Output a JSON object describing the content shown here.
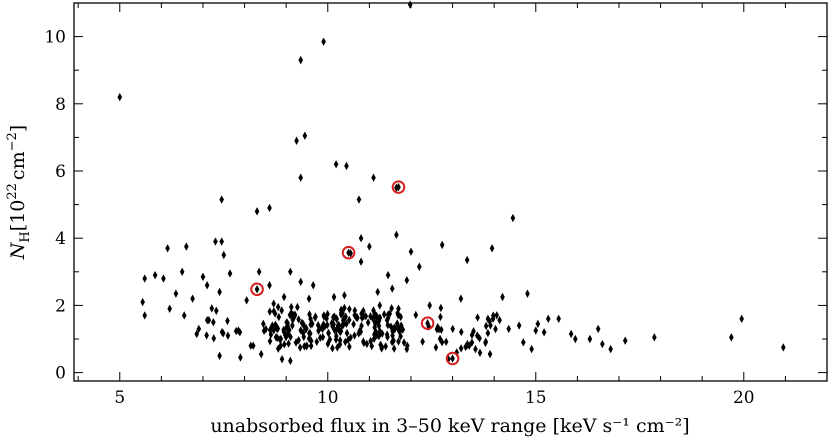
{
  "chart_data": {
    "type": "scatter",
    "xlabel": "unabsorbed flux in 3–50 keV range [keV s⁻¹ cm⁻²]",
    "ylabel": "N_H [10^22 cm^-2]",
    "ylabel_parts": {
      "symbol": "N",
      "sub": "H",
      "unit_pre": "[10",
      "exp1": "22",
      "unit_mid": "cm",
      "exp2": "−2",
      "unit_post": "]"
    },
    "xlim": [
      3.9,
      22.0
    ],
    "ylim": [
      -0.25,
      11.0
    ],
    "x_ticks": [
      5,
      10,
      15,
      20
    ],
    "y_ticks": [
      0,
      2,
      4,
      6,
      8,
      10
    ],
    "grid": false,
    "colors": {
      "points": "#000000",
      "highlight": "#d62020"
    },
    "series": [
      {
        "marker": "diamond",
        "x": [
          5.0,
          11.98,
          9.9,
          9.35,
          7.45,
          9.45,
          9.25,
          10.2,
          10.45,
          9.35,
          11.1,
          11.65,
          10.75,
          8.6,
          8.3,
          7.45,
          14.45,
          11.65,
          11.0,
          10.8,
          12.75,
          7.3,
          10.55,
          13.95,
          6.15,
          6.6,
          10.8,
          12.0,
          7.5,
          13.35,
          12.2,
          9.1,
          7.65,
          6.5,
          7.0,
          8.35,
          11.45,
          11.9,
          8.6,
          9.35,
          5.6,
          5.85,
          8.95,
          7.1,
          7.4,
          6.35,
          6.75,
          8.05,
          8.7,
          9.55,
          10.15,
          11.25,
          12.45,
          11.55,
          6.05,
          13.2,
          14.2,
          14.8,
          15.3,
          15.55,
          16.3,
          16.6,
          16.8,
          17.15,
          17.85,
          19.7,
          19.95,
          20.95,
          15.95,
          15.85,
          14.9,
          14.7,
          14.35,
          13.9,
          13.55,
          12.9,
          12.6,
          11.9,
          13.1,
          13.4,
          7.4,
          7.9,
          8.4,
          8.9,
          9.1,
          8.15,
          7.6,
          6.9,
          6.2,
          5.6,
          5.55,
          6.55,
          7.25,
          8.65,
          7.85,
          6.85,
          11.7,
          13.85,
          14.6,
          15.05,
          15.0,
          16.5,
          15.2,
          11.2,
          10.4,
          9.65
        ],
        "y": [
          8.2,
          10.95,
          9.85,
          9.3,
          5.15,
          7.05,
          6.9,
          6.2,
          6.15,
          5.8,
          5.8,
          5.5,
          5.15,
          4.9,
          4.8,
          3.9,
          4.6,
          4.1,
          3.75,
          4.0,
          3.8,
          3.9,
          3.55,
          3.7,
          3.7,
          3.75,
          3.3,
          3.6,
          3.5,
          3.35,
          3.15,
          3.0,
          2.95,
          3.0,
          2.85,
          3.0,
          2.9,
          2.75,
          2.6,
          2.7,
          2.8,
          2.9,
          2.25,
          2.6,
          2.4,
          2.35,
          2.2,
          2.15,
          2.05,
          2.2,
          2.25,
          2.0,
          2.0,
          2.5,
          2.8,
          2.2,
          2.25,
          2.35,
          1.6,
          1.6,
          1.0,
          0.85,
          0.7,
          0.95,
          1.05,
          1.05,
          1.6,
          0.75,
          1.0,
          1.15,
          0.7,
          0.9,
          1.3,
          0.55,
          0.7,
          0.4,
          0.75,
          0.7,
          0.6,
          0.8,
          0.5,
          0.45,
          0.55,
          0.4,
          0.35,
          0.8,
          1.1,
          1.3,
          1.9,
          1.7,
          2.1,
          1.7,
          1.5,
          1.35,
          1.25,
          1.15,
          1.9,
          1.6,
          1.4,
          1.45,
          1.25,
          1.3,
          1.2,
          2.4,
          2.3,
          2.6
        ]
      },
      {
        "marker": "circle",
        "name": "",
        "x": [
          11.7,
          10.5,
          8.3,
          12.4,
          13.0
        ],
        "y": [
          5.52,
          3.57,
          2.48,
          1.47,
          0.42
        ]
      }
    ],
    "dense_cluster": {
      "x_range": [
        7.0,
        14.2
      ],
      "y_range": [
        0.55,
        1.95
      ],
      "count": 260
    }
  }
}
